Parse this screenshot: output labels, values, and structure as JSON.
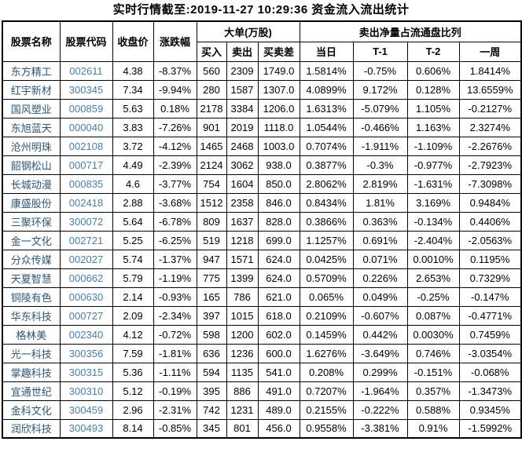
{
  "title": "实时行情截至:2019-11-27 10:29:36 资金流入流出统计",
  "colors": {
    "background": "#ffffff",
    "border": "#000000",
    "text": "#000000",
    "stock_name": "#2f5573",
    "stock_code": "#4b7ea3"
  },
  "table": {
    "headers": {
      "stock_name": "股票名称",
      "stock_code": "股票代码",
      "close_price": "收盘价",
      "change_pct": "涨跌幅",
      "big_order_group": "大单(万股)",
      "buy": "买入",
      "sell": "卖出",
      "buy_sell_diff": "买卖差",
      "net_sell_group": "卖出净量占流通盘比列",
      "day": "当日",
      "t_minus_1": "T-1",
      "t_minus_2": "T-2",
      "week": "一周"
    },
    "rows": [
      [
        "东方精工",
        "002611",
        "4.38",
        "-8.37%",
        "560",
        "2309",
        "1749.0",
        "1.5814%",
        "-0.75%",
        "0.606%",
        "1.8414%"
      ],
      [
        "红宇新材",
        "300345",
        "7.34",
        "-9.94%",
        "280",
        "1587",
        "1307.0",
        "4.0899%",
        "9.172%",
        "0.128%",
        "13.6559%"
      ],
      [
        "国风塑业",
        "000859",
        "5.63",
        "0.18%",
        "2178",
        "3384",
        "1206.0",
        "1.6313%",
        "-5.079%",
        "1.105%",
        "-0.2127%"
      ],
      [
        "东旭蓝天",
        "000040",
        "3.83",
        "-7.26%",
        "901",
        "2019",
        "1118.0",
        "1.0544%",
        "-0.466%",
        "1.163%",
        "2.3274%"
      ],
      [
        "沧州明珠",
        "002108",
        "3.72",
        "-4.12%",
        "1465",
        "2468",
        "1003.0",
        "0.7074%",
        "-1.911%",
        "-1.109%",
        "-2.2676%"
      ],
      [
        "韶钢松山",
        "000717",
        "4.49",
        "-2.39%",
        "2124",
        "3062",
        "938.0",
        "0.3877%",
        "-0.3%",
        "-0.977%",
        "-2.7923%"
      ],
      [
        "长城动漫",
        "000835",
        "4.6",
        "-3.77%",
        "754",
        "1604",
        "850.0",
        "2.8062%",
        "2.819%",
        "-1.631%",
        "-7.3098%"
      ],
      [
        "康盛股份",
        "002418",
        "2.88",
        "-3.68%",
        "1512",
        "2358",
        "846.0",
        "0.8434%",
        "1.81%",
        "3.169%",
        "0.9484%"
      ],
      [
        "三聚环保",
        "300072",
        "5.64",
        "-6.78%",
        "809",
        "1637",
        "828.0",
        "0.3866%",
        "0.363%",
        "-0.134%",
        "0.4406%"
      ],
      [
        "金一文化",
        "002721",
        "5.25",
        "-6.25%",
        "519",
        "1218",
        "699.0",
        "1.1257%",
        "0.691%",
        "-2.404%",
        "-2.0563%"
      ],
      [
        "分众传媒",
        "002027",
        "5.74",
        "-1.37%",
        "947",
        "1571",
        "624.0",
        "0.0425%",
        "0.071%",
        "0.0010%",
        "0.1195%"
      ],
      [
        "天夏智慧",
        "000662",
        "5.79",
        "-1.19%",
        "775",
        "1399",
        "624.0",
        "0.5709%",
        "0.226%",
        "2.653%",
        "0.7329%"
      ],
      [
        "铜陵有色",
        "000630",
        "2.14",
        "-0.93%",
        "165",
        "786",
        "621.0",
        "0.065%",
        "0.049%",
        "-0.25%",
        "-0.147%"
      ],
      [
        "华东科技",
        "000727",
        "2.09",
        "-2.34%",
        "397",
        "1015",
        "618.0",
        "0.2109%",
        "-0.607%",
        "0.087%",
        "-0.4771%"
      ],
      [
        "格林美",
        "002340",
        "4.12",
        "-0.72%",
        "598",
        "1200",
        "602.0",
        "0.1459%",
        "0.442%",
        "0.0030%",
        "0.7459%"
      ],
      [
        "光一科技",
        "300356",
        "7.59",
        "-1.81%",
        "636",
        "1236",
        "600.0",
        "1.6276%",
        "-3.649%",
        "0.746%",
        "-3.0354%"
      ],
      [
        "掌趣科技",
        "300315",
        "5.36",
        "-1.11%",
        "594",
        "1135",
        "541.0",
        "0.208%",
        "0.299%",
        "-0.151%",
        "-0.068%"
      ],
      [
        "宜通世纪",
        "300310",
        "5.12",
        "-0.19%",
        "395",
        "886",
        "491.0",
        "0.7207%",
        "-1.964%",
        "0.357%",
        "-1.3473%"
      ],
      [
        "金科文化",
        "300459",
        "2.96",
        "-2.31%",
        "742",
        "1231",
        "489.0",
        "0.2155%",
        "-0.222%",
        "0.588%",
        "0.9345%"
      ],
      [
        "润欣科技",
        "300493",
        "8.14",
        "-0.85%",
        "345",
        "801",
        "456.0",
        "0.9558%",
        "-3.381%",
        "0.91%",
        "-1.5992%"
      ]
    ]
  }
}
